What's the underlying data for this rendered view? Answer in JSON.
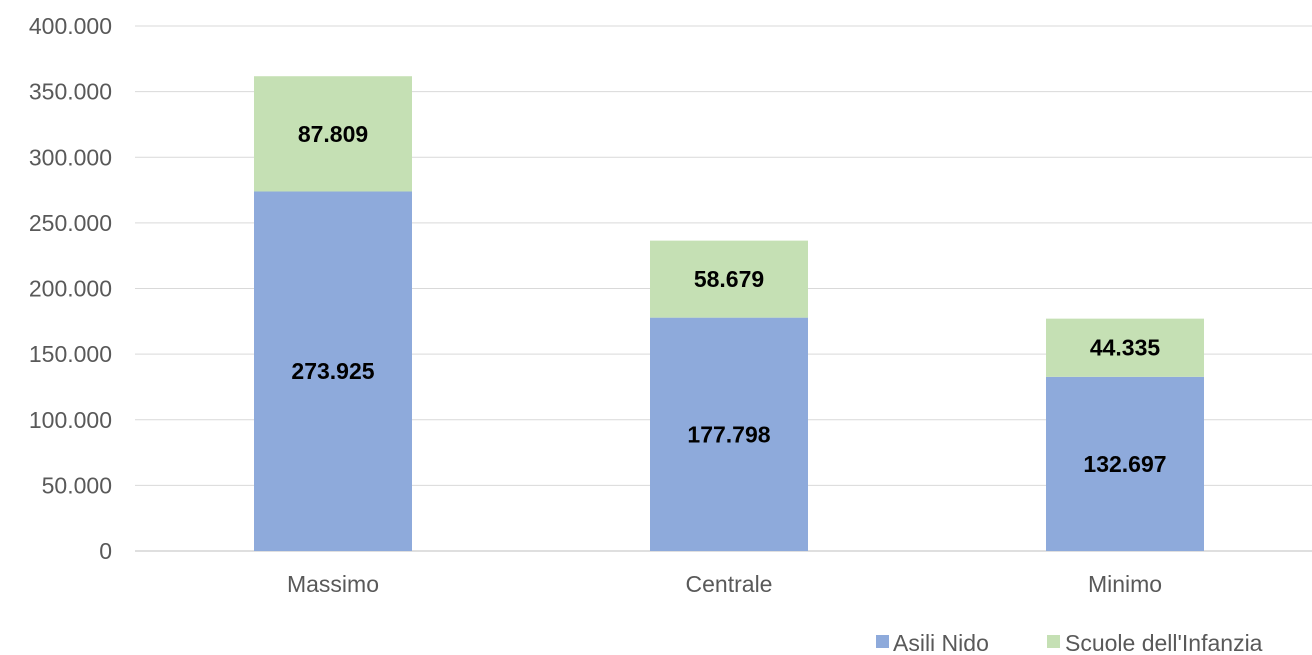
{
  "chart_data": {
    "type": "bar",
    "stacked": true,
    "categories": [
      "Massimo",
      "Centrale",
      "Minimo"
    ],
    "series": [
      {
        "name": "Asili Nido",
        "values": [
          273925,
          177798,
          132697
        ],
        "labels": [
          "273.925",
          "177.798",
          "132.697"
        ],
        "color": "#8eaadb"
      },
      {
        "name": "Scuole dell'Infanzia",
        "values": [
          87809,
          58679,
          44335
        ],
        "labels": [
          "87.809",
          "58.679",
          "44.335"
        ],
        "color": "#c5e0b4"
      }
    ],
    "y_ticks": [
      0,
      50000,
      100000,
      150000,
      200000,
      250000,
      300000,
      350000,
      400000
    ],
    "y_tick_labels": [
      "0",
      "50.000",
      "100.000",
      "150.000",
      "200.000",
      "250.000",
      "300.000",
      "350.000",
      "400.000"
    ],
    "ylim": [
      0,
      400000
    ],
    "grid": true,
    "legend_position": "bottom-right",
    "title": "",
    "xlabel": "",
    "ylabel": ""
  }
}
